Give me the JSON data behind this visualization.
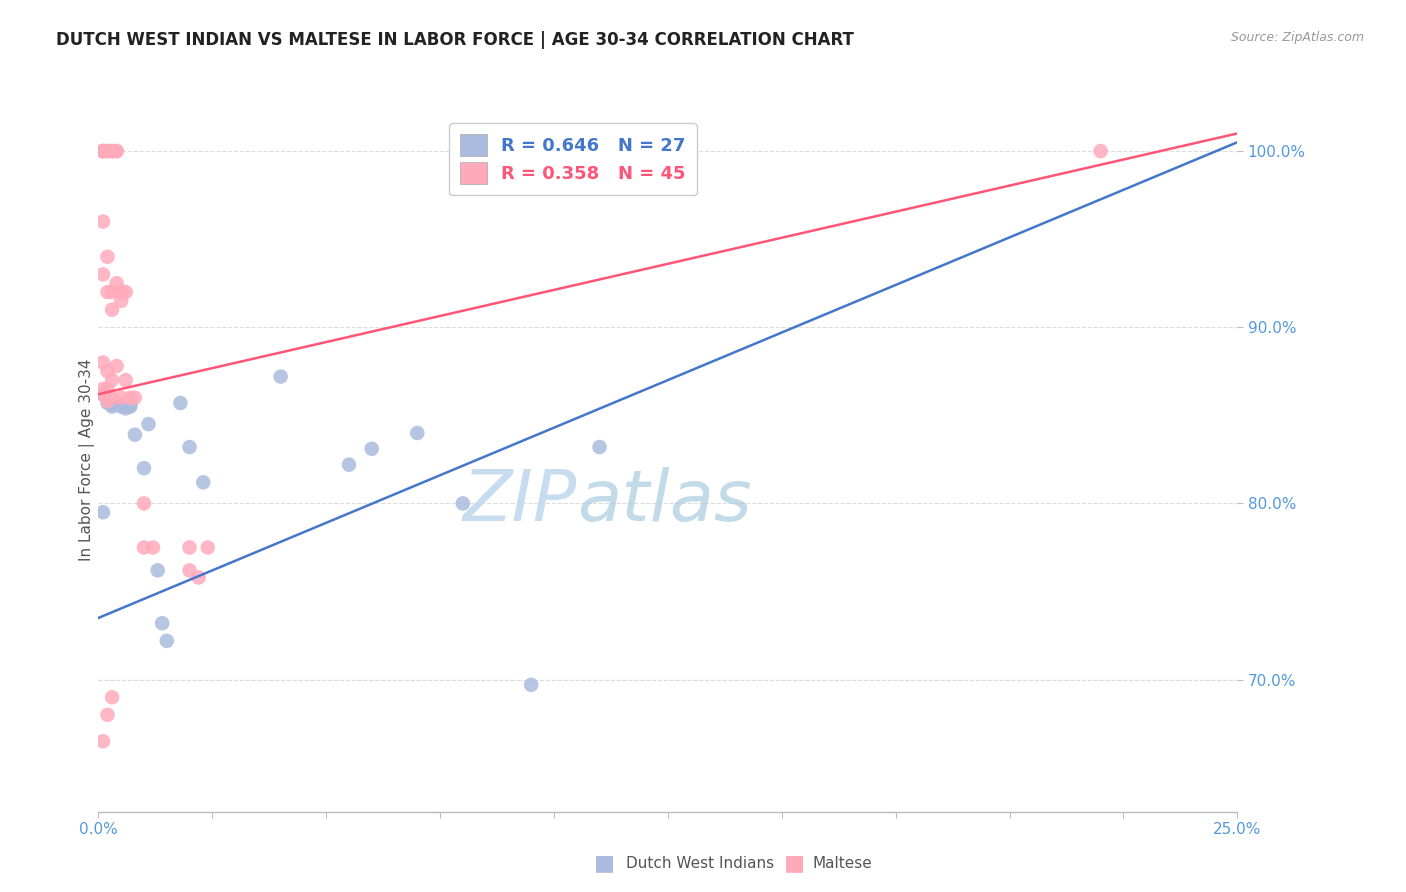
{
  "title": "DUTCH WEST INDIAN VS MALTESE IN LABOR FORCE | AGE 30-34 CORRELATION CHART",
  "source": "Source: ZipAtlas.com",
  "ylabel": "In Labor Force | Age 30-34",
  "xlim": [
    0.0,
    0.25
  ],
  "ylim": [
    0.625,
    1.025
  ],
  "blue_R": 0.646,
  "blue_N": 27,
  "pink_R": 0.358,
  "pink_N": 45,
  "blue_dot_color": "#AABBDD",
  "pink_dot_color": "#FFAABB",
  "blue_line_color": "#4477CC",
  "pink_line_color": "#FF5577",
  "axis_label_color": "#5599DD",
  "grid_color": "#DDDDDD",
  "grid_style": "--",
  "blue_trend_x": [
    0.0,
    0.25
  ],
  "blue_trend_y": [
    0.735,
    1.005
  ],
  "pink_trend_x": [
    0.0,
    0.25
  ],
  "pink_trend_y": [
    0.862,
    1.01
  ],
  "blue_dots_x": [
    0.001,
    0.001,
    0.002,
    0.003,
    0.003,
    0.004,
    0.005,
    0.005,
    0.006,
    0.007,
    0.007,
    0.008,
    0.01,
    0.011,
    0.013,
    0.014,
    0.015,
    0.018,
    0.02,
    0.023,
    0.04,
    0.055,
    0.06,
    0.07,
    0.08,
    0.095,
    0.11
  ],
  "blue_dots_y": [
    0.862,
    0.795,
    0.857,
    0.856,
    0.855,
    0.857,
    0.856,
    0.855,
    0.854,
    0.856,
    0.855,
    0.839,
    0.82,
    0.845,
    0.762,
    0.732,
    0.722,
    0.857,
    0.832,
    0.812,
    0.872,
    0.822,
    0.831,
    0.84,
    0.8,
    0.697,
    0.832
  ],
  "pink_dots_x": [
    0.001,
    0.001,
    0.001,
    0.001,
    0.001,
    0.001,
    0.001,
    0.001,
    0.001,
    0.002,
    0.002,
    0.002,
    0.002,
    0.002,
    0.002,
    0.002,
    0.003,
    0.003,
    0.003,
    0.003,
    0.003,
    0.003,
    0.003,
    0.004,
    0.004,
    0.004,
    0.004,
    0.005,
    0.005,
    0.005,
    0.006,
    0.006,
    0.007,
    0.008,
    0.01,
    0.01,
    0.012,
    0.02,
    0.02,
    0.022,
    0.024,
    0.001,
    0.002,
    0.003,
    0.22
  ],
  "pink_dots_y": [
    1.0,
    1.0,
    1.0,
    1.0,
    0.96,
    0.93,
    0.88,
    0.865,
    0.862,
    1.0,
    1.0,
    0.94,
    0.92,
    0.875,
    0.865,
    0.858,
    1.0,
    1.0,
    1.0,
    0.92,
    0.91,
    0.87,
    0.86,
    1.0,
    1.0,
    0.925,
    0.878,
    0.92,
    0.915,
    0.86,
    0.92,
    0.87,
    0.86,
    0.86,
    0.8,
    0.775,
    0.775,
    0.775,
    0.762,
    0.758,
    0.775,
    0.665,
    0.68,
    0.69,
    1.0
  ]
}
